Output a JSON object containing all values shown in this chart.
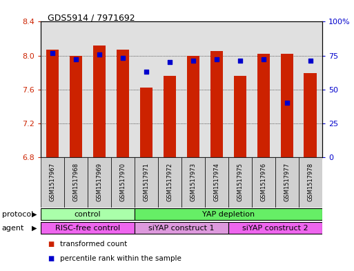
{
  "title": "GDS5914 / 7971692",
  "samples": [
    "GSM1517967",
    "GSM1517968",
    "GSM1517969",
    "GSM1517970",
    "GSM1517971",
    "GSM1517972",
    "GSM1517973",
    "GSM1517974",
    "GSM1517975",
    "GSM1517976",
    "GSM1517977",
    "GSM1517978"
  ],
  "bar_tops": [
    8.07,
    8.0,
    8.12,
    8.07,
    7.62,
    7.76,
    8.0,
    8.05,
    7.76,
    8.02,
    8.02,
    7.79
  ],
  "bar_bottom": 6.8,
  "percentile_values": [
    77,
    72,
    76,
    73,
    63,
    70,
    71,
    72,
    71,
    72,
    40,
    71
  ],
  "ylim_left": [
    6.8,
    8.4
  ],
  "yticks_left": [
    6.8,
    7.2,
    7.6,
    8.0,
    8.4
  ],
  "yticks_right": [
    0,
    25,
    50,
    75,
    100
  ],
  "ytick_right_labels": [
    "0",
    "25",
    "50",
    "75",
    "100%"
  ],
  "bar_color": "#cc2200",
  "dot_color": "#0000cc",
  "bar_width": 0.55,
  "protocol_groups": [
    {
      "label": "control",
      "start": 0,
      "end": 3,
      "color": "#aaffaa"
    },
    {
      "label": "YAP depletion",
      "start": 4,
      "end": 11,
      "color": "#66ee66"
    }
  ],
  "agent_groups": [
    {
      "label": "RISC-free control",
      "start": 0,
      "end": 3,
      "color": "#ee66ee"
    },
    {
      "label": "siYAP construct 1",
      "start": 4,
      "end": 7,
      "color": "#dd99dd"
    },
    {
      "label": "siYAP construct 2",
      "start": 8,
      "end": 11,
      "color": "#ee66ee"
    }
  ],
  "legend_items": [
    {
      "label": "transformed count",
      "color": "#cc2200"
    },
    {
      "label": "percentile rank within the sample",
      "color": "#0000cc"
    }
  ],
  "xlabel_protocol": "protocol",
  "xlabel_agent": "agent",
  "plot_bg_color": "#e0e0e0",
  "sample_box_color": "#d0d0d0",
  "left_label_color": "#cc2200",
  "right_label_color": "#0000cc",
  "grid_lines": [
    7.2,
    7.6,
    8.0
  ]
}
